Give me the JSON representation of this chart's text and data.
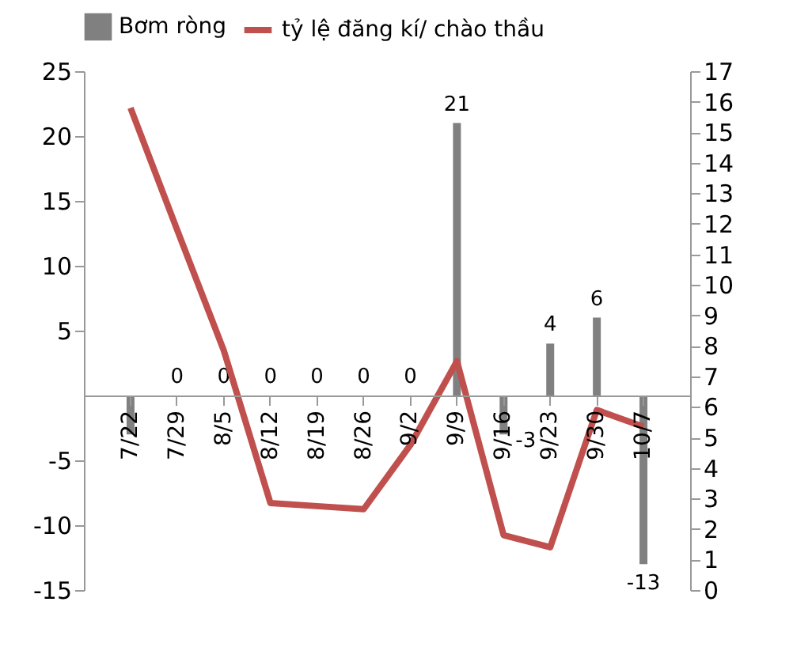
{
  "chart_data": {
    "type": "bar",
    "categories": [
      "7/22",
      "7/29",
      "8/5",
      "8/12",
      "8/19",
      "8/26",
      "9/2",
      "9/9",
      "9/16",
      "9/23",
      "9/30",
      "10/7"
    ],
    "series": [
      {
        "name": "Bơm ròng",
        "color": "#808080",
        "values": [
          -3,
          0,
          0,
          0,
          0,
          0,
          0,
          21,
          -3,
          4,
          6,
          -13
        ],
        "value_labels": [
          null,
          "0",
          "0",
          "0",
          "0",
          "0",
          "0",
          "21",
          "-3",
          "4",
          "6",
          "-13"
        ]
      },
      {
        "name": "tỷ lệ đăng kí/ chào thầu",
        "type": "line",
        "axis": "y2",
        "color": "#c0504d",
        "values": [
          15.8,
          11.8,
          7.85,
          2.85,
          2.75,
          2.65,
          4.75,
          7.5,
          1.8,
          1.4,
          5.9,
          5.35
        ]
      }
    ],
    "ylim": [
      -15,
      25
    ],
    "yticks": [
      -15,
      -10,
      -5,
      5,
      10,
      15,
      20,
      25
    ],
    "y2lim": [
      0,
      17
    ],
    "y2ticks": [
      0,
      1,
      2,
      3,
      4,
      5,
      6,
      7,
      8,
      9,
      10,
      11,
      12,
      13,
      14,
      15,
      16,
      17
    ],
    "grid": false,
    "legend": "top",
    "marker": "none",
    "line_style": "solid"
  }
}
